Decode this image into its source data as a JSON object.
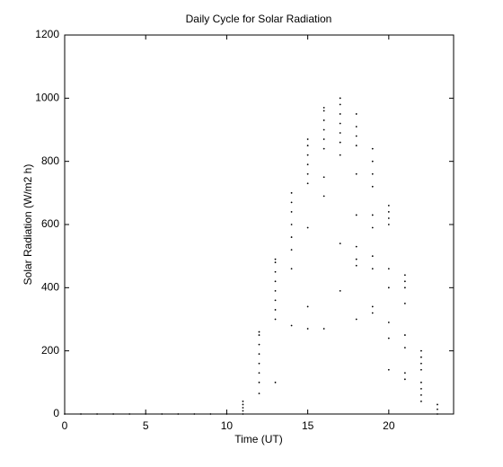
{
  "chart_data": {
    "type": "scatter",
    "title": "Daily Cycle for Solar Radiation",
    "x_label": "Time (UT)",
    "y_label": "Solar Radiation (W/m2 h)",
    "color": "#000000",
    "xlim": [
      0,
      24
    ],
    "ylim": [
      0,
      1200
    ],
    "xticks": [
      0,
      5,
      10,
      15,
      20
    ],
    "yticks": [
      0,
      200,
      400,
      600,
      800,
      1000,
      1200
    ],
    "x": [
      0,
      1,
      2,
      3,
      4,
      5,
      6,
      7,
      8,
      9,
      10,
      11,
      11,
      11,
      11,
      11,
      12,
      12,
      12,
      12,
      12,
      12,
      12,
      12,
      13,
      13,
      13,
      13,
      13,
      13,
      13,
      13,
      13,
      14,
      14,
      14,
      14,
      14,
      14,
      14,
      14,
      15,
      15,
      15,
      15,
      15,
      15,
      15,
      15,
      15,
      16,
      16,
      16,
      16,
      16,
      16,
      16,
      16,
      16,
      17,
      17,
      17,
      17,
      17,
      17,
      17,
      17,
      17,
      18,
      18,
      18,
      18,
      18,
      18,
      18,
      18,
      18,
      18,
      19,
      19,
      19,
      19,
      19,
      19,
      19,
      19,
      19,
      19,
      20,
      20,
      20,
      20,
      20,
      20,
      20,
      20,
      20,
      21,
      21,
      21,
      21,
      21,
      21,
      21,
      21,
      22,
      22,
      22,
      22,
      22,
      22,
      22,
      22,
      23,
      23,
      23
    ],
    "y": [
      0,
      0,
      0,
      0,
      0,
      0,
      0,
      0,
      0,
      0,
      0,
      0,
      10,
      20,
      30,
      40,
      65,
      100,
      130,
      160,
      190,
      220,
      250,
      260,
      100,
      300,
      330,
      360,
      390,
      420,
      450,
      480,
      490,
      280,
      460,
      520,
      560,
      600,
      640,
      670,
      700,
      270,
      340,
      590,
      730,
      760,
      790,
      820,
      850,
      870,
      270,
      690,
      750,
      840,
      870,
      900,
      930,
      960,
      970,
      390,
      540,
      820,
      860,
      890,
      920,
      950,
      980,
      1000,
      300,
      470,
      490,
      530,
      630,
      760,
      850,
      880,
      910,
      950,
      320,
      340,
      460,
      500,
      590,
      630,
      720,
      760,
      800,
      840,
      140,
      240,
      290,
      400,
      460,
      600,
      620,
      640,
      660,
      110,
      130,
      210,
      250,
      350,
      400,
      420,
      440,
      40,
      60,
      80,
      100,
      140,
      160,
      180,
      200,
      0,
      15,
      30
    ]
  }
}
